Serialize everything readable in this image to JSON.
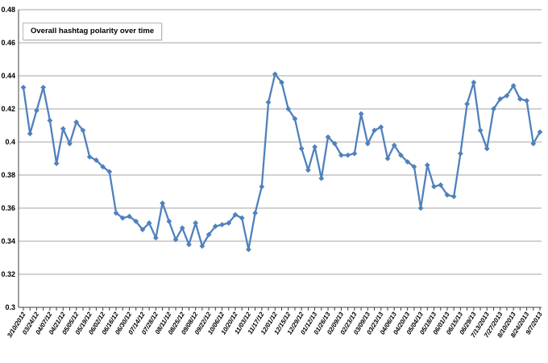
{
  "chart_data": {
    "type": "line",
    "title": "Overall hashtag polarity over time",
    "xlabel": "",
    "ylabel": "",
    "ylim": [
      0.3,
      0.48
    ],
    "ytick_step": 0.02,
    "grid": true,
    "legend": "none",
    "marker": "diamond",
    "label_every": 2,
    "y_tick_labels": [
      "0.48",
      "0.46",
      "0.44",
      "0.42",
      "0.4",
      "0.38",
      "0.36",
      "0.34",
      "0.32",
      "0.3"
    ],
    "y_tick_values": [
      0.48,
      0.46,
      0.44,
      0.42,
      0.4,
      0.38,
      0.36,
      0.34,
      0.32,
      0.3
    ],
    "x_labels": [
      "3/10/2012",
      "03/24/12",
      "04/07/12",
      "04/21/12",
      "05/05/12",
      "05/19/12",
      "06/02/12",
      "06/16/12",
      "06/30/12",
      "07/14/12",
      "07/28/12",
      "08/11/12",
      "08/25/12",
      "09/08/12",
      "09/22/12",
      "10/06/12",
      "10/20/12",
      "11/03/12",
      "11/17/12",
      "12/01/12",
      "12/15/12",
      "12/29/12",
      "01/12/13",
      "01/26/13",
      "02/09/13",
      "02/23/13",
      "03/09/13",
      "03/23/13",
      "04/06/13",
      "04/20/13",
      "05/04/13",
      "05/18/13",
      "06/01/13",
      "06/15/13",
      "06/29/13",
      "7/13/2013",
      "7/27/2013",
      "8/10/2013",
      "8/24/2013",
      "9/7/2013"
    ],
    "dates": [
      "3/10/2012",
      "03/17/12",
      "03/24/12",
      "03/31/12",
      "04/07/12",
      "04/14/12",
      "04/21/12",
      "04/28/12",
      "05/05/12",
      "05/12/12",
      "05/19/12",
      "05/26/12",
      "06/02/12",
      "06/09/12",
      "06/16/12",
      "06/23/12",
      "06/30/12",
      "07/07/12",
      "07/14/12",
      "07/21/12",
      "07/28/12",
      "08/04/12",
      "08/11/12",
      "08/18/12",
      "08/25/12",
      "09/01/12",
      "09/08/12",
      "09/15/12",
      "09/22/12",
      "09/29/12",
      "10/06/12",
      "10/13/12",
      "10/20/12",
      "10/27/12",
      "11/03/12",
      "11/10/12",
      "11/17/12",
      "11/24/12",
      "12/01/12",
      "12/08/12",
      "12/15/12",
      "12/22/12",
      "12/29/12",
      "01/05/13",
      "01/12/13",
      "01/19/13",
      "01/26/13",
      "02/02/13",
      "02/09/13",
      "02/16/13",
      "02/23/13",
      "03/02/13",
      "03/09/13",
      "03/16/13",
      "03/23/13",
      "03/30/13",
      "04/06/13",
      "04/13/13",
      "04/20/13",
      "04/27/13",
      "05/04/13",
      "05/11/13",
      "05/18/13",
      "05/25/13",
      "06/01/13",
      "06/08/13",
      "06/15/13",
      "06/22/13",
      "06/29/13",
      "7/6/2013",
      "7/13/2013",
      "7/20/2013",
      "7/27/2013",
      "8/3/2013",
      "8/10/2013",
      "8/17/2013",
      "8/24/2013",
      "8/31/2013",
      "9/7/2013"
    ],
    "series": [
      {
        "name": "Overall hashtag polarity",
        "values": [
          0.433,
          0.405,
          0.419,
          0.433,
          0.413,
          0.387,
          0.408,
          0.399,
          0.412,
          0.407,
          0.391,
          0.389,
          0.385,
          0.382,
          0.357,
          0.354,
          0.355,
          0.352,
          0.347,
          0.351,
          0.342,
          0.363,
          0.352,
          0.341,
          0.348,
          0.338,
          0.351,
          0.337,
          0.344,
          0.349,
          0.35,
          0.351,
          0.356,
          0.354,
          0.335,
          0.357,
          0.373,
          0.424,
          0.441,
          0.436,
          0.42,
          0.414,
          0.396,
          0.383,
          0.397,
          0.378,
          0.403,
          0.399,
          0.392,
          0.392,
          0.393,
          0.417,
          0.399,
          0.407,
          0.409,
          0.39,
          0.398,
          0.392,
          0.388,
          0.385,
          0.36,
          0.386,
          0.373,
          0.374,
          0.368,
          0.367,
          0.393,
          0.423,
          0.436,
          0.407,
          0.396,
          0.42,
          0.426,
          0.428,
          0.434,
          0.426,
          0.425,
          0.399,
          0.406
        ]
      }
    ],
    "colors": {
      "line": "#4F81BD",
      "gridline": "#A6A6A6",
      "axis": "#404040",
      "text": "#000000",
      "title_border": "#B7B7B7"
    }
  }
}
